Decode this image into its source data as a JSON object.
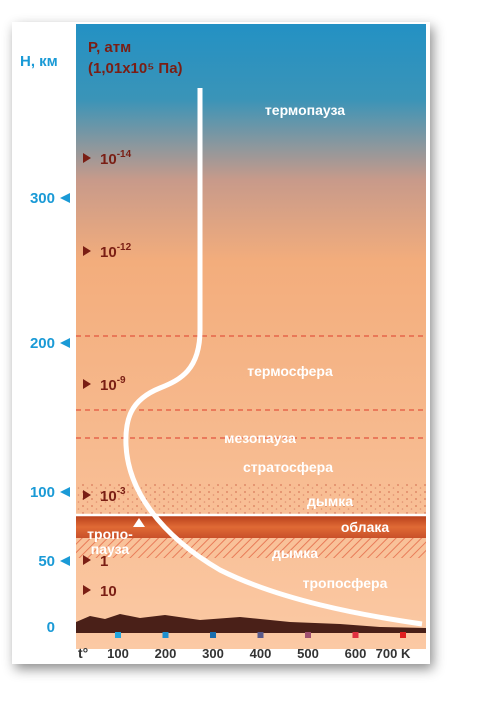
{
  "axis_height": {
    "title": "H, км",
    "ticks": [
      "300",
      "200",
      "100",
      "50",
      "0"
    ]
  },
  "axis_pressure": {
    "title": "P, атм",
    "subtitle": "(1,01x10⁵ Па)",
    "ticks": [
      {
        "base": "10",
        "exp": "-14"
      },
      {
        "base": "10",
        "exp": "-12"
      },
      {
        "base": "10",
        "exp": "-9"
      },
      {
        "base": "10",
        "exp": "-3"
      },
      {
        "base": "1",
        "exp": ""
      },
      {
        "base": "10",
        "exp": ""
      }
    ]
  },
  "layers": [
    "термопауза",
    "термосфера",
    "мезопауза",
    "стратосфера",
    "дымка",
    "облака",
    "тропо-",
    "пауза",
    "дымка",
    "тропосфера"
  ],
  "axis_temperature": {
    "title": "t°",
    "ticks": [
      "100",
      "200",
      "300",
      "400",
      "500",
      "600",
      "700 K"
    ]
  }
}
